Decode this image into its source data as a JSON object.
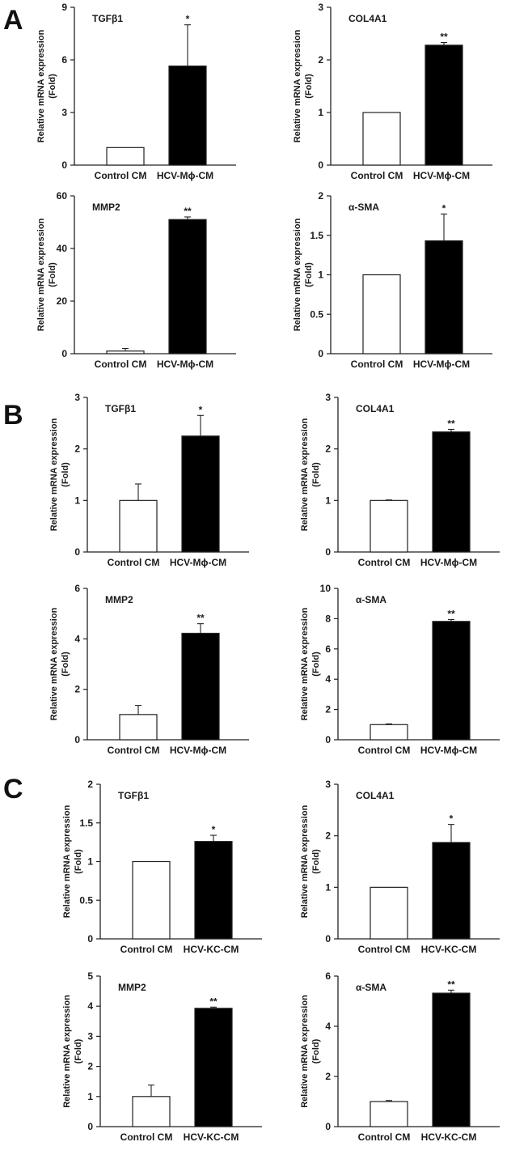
{
  "panels": [
    {
      "letter": "A"
    },
    {
      "letter": "B"
    },
    {
      "letter": "C"
    }
  ],
  "chart_data": [
    {
      "panel": "A",
      "type": "bar",
      "title": "TGFβ1",
      "ylabel_lines": [
        "Relative mRNA expression",
        "(Fold)"
      ],
      "categories": [
        "Control CM",
        "HCV-Mϕ-CM"
      ],
      "values": [
        1,
        5.65
      ],
      "errors": [
        0,
        2.35
      ],
      "significance": [
        "",
        "*"
      ],
      "ylim": [
        0,
        9
      ],
      "yticks": [
        0,
        3,
        6,
        9
      ],
      "bar_colors": [
        "#ffffff",
        "#000000"
      ]
    },
    {
      "panel": "A",
      "type": "bar",
      "title": "COL4A1",
      "ylabel_lines": [
        "Relative mRNA expression",
        "(Fold)"
      ],
      "categories": [
        "Control CM",
        "HCV-Mϕ-CM"
      ],
      "values": [
        1,
        2.28
      ],
      "errors": [
        0,
        0.05
      ],
      "significance": [
        "",
        "**"
      ],
      "ylim": [
        0,
        3
      ],
      "yticks": [
        0,
        1,
        2,
        3
      ],
      "bar_colors": [
        "#ffffff",
        "#000000"
      ]
    },
    {
      "panel": "A",
      "type": "bar",
      "title": "MMP2",
      "ylabel_lines": [
        "Relative mRNA expression",
        "(Fold)"
      ],
      "categories": [
        "Control CM",
        "HCV-Mϕ-CM"
      ],
      "values": [
        1,
        51
      ],
      "errors": [
        1,
        1
      ],
      "significance": [
        "",
        "**"
      ],
      "ylim": [
        0,
        60
      ],
      "yticks": [
        0,
        20,
        40,
        60
      ],
      "bar_colors": [
        "#ffffff",
        "#000000"
      ]
    },
    {
      "panel": "A",
      "type": "bar",
      "title": "α-SMA",
      "ylabel_lines": [
        "Relative mRNA expression",
        "(Fold)"
      ],
      "categories": [
        "Control CM",
        "HCV-Mϕ-CM"
      ],
      "values": [
        1,
        1.43
      ],
      "errors": [
        0,
        0.34
      ],
      "significance": [
        "",
        "*"
      ],
      "ylim": [
        0,
        2
      ],
      "yticks": [
        0,
        0.5,
        1,
        1.5,
        2
      ],
      "bar_colors": [
        "#ffffff",
        "#000000"
      ]
    },
    {
      "panel": "B",
      "type": "bar",
      "title": "TGFβ1",
      "ylabel_lines": [
        "Relative mRNA expression",
        "(Fold)"
      ],
      "categories": [
        "Control CM",
        "HCV-Mϕ-CM"
      ],
      "values": [
        1,
        2.25
      ],
      "errors": [
        0.32,
        0.4
      ],
      "significance": [
        "",
        "*"
      ],
      "ylim": [
        0,
        3
      ],
      "yticks": [
        0,
        1,
        2,
        3
      ],
      "bar_colors": [
        "#ffffff",
        "#000000"
      ]
    },
    {
      "panel": "B",
      "type": "bar",
      "title": "COL4A1",
      "ylabel_lines": [
        "Relative mRNA expression",
        "(Fold)"
      ],
      "categories": [
        "Control CM",
        "HCV-Mϕ-CM"
      ],
      "values": [
        1,
        2.33
      ],
      "errors": [
        0.01,
        0.05
      ],
      "significance": [
        "",
        "**"
      ],
      "ylim": [
        0,
        3
      ],
      "yticks": [
        0,
        1,
        2,
        3
      ],
      "bar_colors": [
        "#ffffff",
        "#000000"
      ]
    },
    {
      "panel": "B",
      "type": "bar",
      "title": "MMP2",
      "ylabel_lines": [
        "Relative mRNA expression",
        "(Fold)"
      ],
      "categories": [
        "Control CM",
        "HCV-Mϕ-CM"
      ],
      "values": [
        1,
        4.22
      ],
      "errors": [
        0.36,
        0.38
      ],
      "significance": [
        "",
        "**"
      ],
      "ylim": [
        0,
        6
      ],
      "yticks": [
        0,
        2,
        4,
        6
      ],
      "bar_colors": [
        "#ffffff",
        "#000000"
      ]
    },
    {
      "panel": "B",
      "type": "bar",
      "title": "α-SMA",
      "ylabel_lines": [
        "Relative mRNA expression",
        "(Fold)"
      ],
      "categories": [
        "Control CM",
        "HCV-Mϕ-CM"
      ],
      "values": [
        1,
        7.82
      ],
      "errors": [
        0.05,
        0.12
      ],
      "significance": [
        "",
        "**"
      ],
      "ylim": [
        0,
        10
      ],
      "yticks": [
        0,
        2,
        4,
        6,
        8,
        10
      ],
      "bar_colors": [
        "#ffffff",
        "#000000"
      ]
    },
    {
      "panel": "C",
      "type": "bar",
      "title": "TGFβ1",
      "ylabel_lines": [
        "Relative mRNA expression",
        "(Fold)"
      ],
      "categories": [
        "Control CM",
        "HCV-KC-CM"
      ],
      "values": [
        1,
        1.26
      ],
      "errors": [
        0,
        0.08
      ],
      "significance": [
        "",
        "*"
      ],
      "ylim": [
        0,
        2
      ],
      "yticks": [
        0,
        0.5,
        1,
        1.5,
        2
      ],
      "bar_colors": [
        "#ffffff",
        "#000000"
      ]
    },
    {
      "panel": "C",
      "type": "bar",
      "title": "COL4A1",
      "ylabel_lines": [
        "Relative mRNA expression",
        "(Fold)"
      ],
      "categories": [
        "Control CM",
        "HCV-KC-CM"
      ],
      "values": [
        1,
        1.87
      ],
      "errors": [
        0,
        0.35
      ],
      "significance": [
        "",
        "*"
      ],
      "ylim": [
        0,
        3
      ],
      "yticks": [
        0,
        1,
        2,
        3
      ],
      "bar_colors": [
        "#ffffff",
        "#000000"
      ]
    },
    {
      "panel": "C",
      "type": "bar",
      "title": "MMP2",
      "ylabel_lines": [
        "Relative mRNA expression",
        "(Fold)"
      ],
      "categories": [
        "Control CM",
        "HCV-KC-CM"
      ],
      "values": [
        1,
        3.93
      ],
      "errors": [
        0.38,
        0.04
      ],
      "significance": [
        "",
        "**"
      ],
      "ylim": [
        0,
        5
      ],
      "yticks": [
        0,
        1,
        2,
        3,
        4,
        5
      ],
      "bar_colors": [
        "#ffffff",
        "#000000"
      ]
    },
    {
      "panel": "C",
      "type": "bar",
      "title": "α-SMA",
      "ylabel_lines": [
        "Relative mRNA expression",
        "(Fold)"
      ],
      "categories": [
        "Control CM",
        "HCV-KC-CM"
      ],
      "values": [
        1,
        5.32
      ],
      "errors": [
        0.04,
        0.12
      ],
      "significance": [
        "",
        "**"
      ],
      "ylim": [
        0,
        6
      ],
      "yticks": [
        0,
        2,
        4,
        6
      ],
      "bar_colors": [
        "#ffffff",
        "#000000"
      ]
    }
  ]
}
